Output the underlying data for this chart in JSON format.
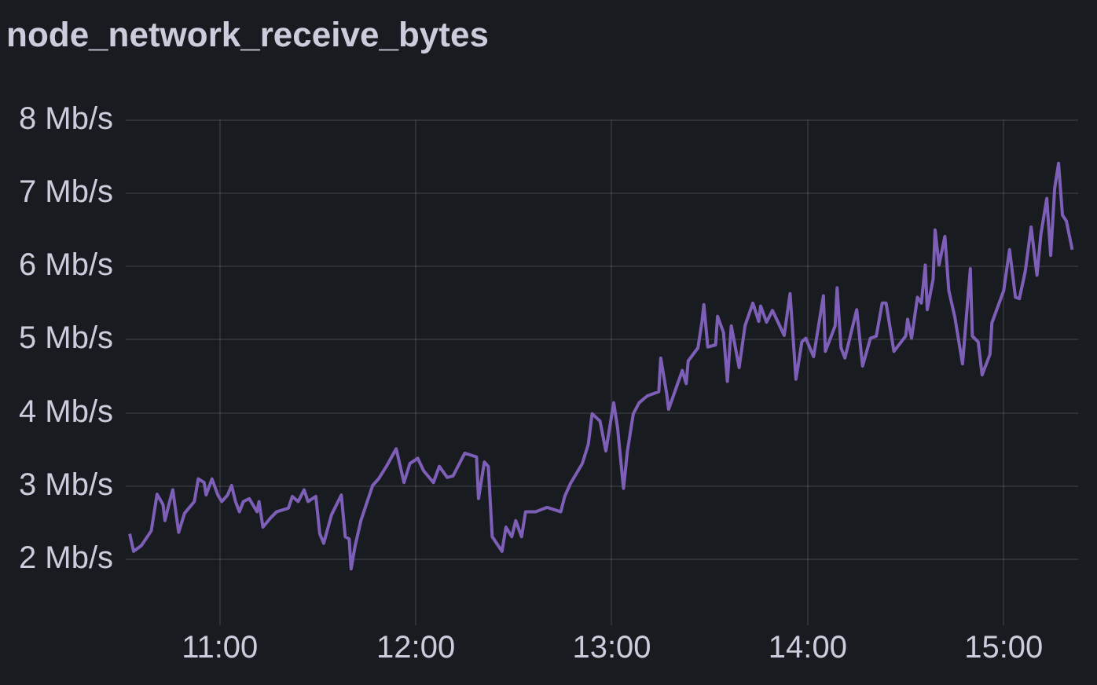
{
  "chart_data": {
    "type": "line",
    "title": "node_network_receive_bytes",
    "xlim": [
      10.52,
      15.38
    ],
    "xticks": [
      {
        "value": 11,
        "label": "11:00"
      },
      {
        "value": 12,
        "label": "12:00"
      },
      {
        "value": 13,
        "label": "13:00"
      },
      {
        "value": 14,
        "label": "14:00"
      },
      {
        "value": 15,
        "label": "15:00"
      }
    ],
    "ylim": [
      1.1,
      8
    ],
    "yticks": [
      {
        "value": 2,
        "label": "2 Mb/s"
      },
      {
        "value": 3,
        "label": "3 Mb/s"
      },
      {
        "value": 4,
        "label": "4 Mb/s"
      },
      {
        "value": 5,
        "label": "5 Mb/s"
      },
      {
        "value": 6,
        "label": "6 Mb/s"
      },
      {
        "value": 7,
        "label": "7 Mb/s"
      },
      {
        "value": 8,
        "label": "8 Mb/s"
      }
    ],
    "grid": true,
    "marker": "none",
    "line_style": "solid",
    "series": [
      {
        "color": "#7e5fb8",
        "x": [
          10.54,
          10.56,
          10.6,
          10.65,
          10.68,
          10.71,
          10.72,
          10.74,
          10.76,
          10.79,
          10.82,
          10.87,
          10.89,
          10.92,
          10.93,
          10.96,
          10.99,
          11.01,
          11.04,
          11.06,
          11.08,
          11.1,
          11.12,
          11.15,
          11.19,
          11.2,
          11.22,
          11.26,
          11.29,
          11.35,
          11.37,
          11.4,
          11.43,
          11.45,
          11.49,
          11.51,
          11.53,
          11.57,
          11.62,
          11.64,
          11.66,
          11.67,
          11.69,
          11.72,
          11.78,
          11.81,
          11.85,
          11.9,
          11.94,
          11.97,
          12.01,
          12.04,
          12.09,
          12.12,
          12.16,
          12.19,
          12.25,
          12.31,
          12.32,
          12.35,
          12.37,
          12.39,
          12.44,
          12.46,
          12.49,
          12.51,
          12.54,
          12.56,
          12.61,
          12.67,
          12.74,
          12.76,
          12.79,
          12.85,
          12.88,
          12.9,
          12.94,
          12.97,
          13.01,
          13.03,
          13.06,
          13.08,
          13.11,
          13.14,
          13.18,
          13.24,
          13.25,
          13.28,
          13.29,
          13.31,
          13.36,
          13.38,
          13.39,
          13.44,
          13.46,
          13.47,
          13.49,
          13.53,
          13.54,
          13.57,
          13.59,
          13.61,
          13.65,
          13.68,
          13.72,
          13.75,
          13.76,
          13.79,
          13.82,
          13.88,
          13.91,
          13.94,
          13.97,
          13.99,
          14.03,
          14.08,
          14.09,
          14.14,
          14.15,
          14.17,
          14.19,
          14.25,
          14.28,
          14.32,
          14.35,
          14.38,
          14.4,
          14.44,
          14.5,
          14.51,
          14.53,
          14.56,
          14.58,
          14.6,
          14.61,
          14.64,
          14.65,
          14.67,
          14.7,
          14.72,
          14.75,
          14.79,
          14.83,
          14.84,
          14.87,
          14.89,
          14.93,
          14.94,
          15.0,
          15.03,
          15.06,
          15.08,
          15.11,
          15.14,
          15.17,
          15.19,
          15.22,
          15.24,
          15.26,
          15.28,
          15.3,
          15.32,
          15.35
        ],
        "values": [
          2.35,
          2.11,
          2.19,
          2.39,
          2.89,
          2.75,
          2.53,
          2.75,
          2.95,
          2.37,
          2.63,
          2.79,
          3.1,
          3.05,
          2.88,
          3.1,
          2.88,
          2.79,
          2.88,
          3.01,
          2.79,
          2.65,
          2.79,
          2.83,
          2.65,
          2.79,
          2.44,
          2.57,
          2.65,
          2.7,
          2.86,
          2.79,
          2.95,
          2.79,
          2.86,
          2.35,
          2.22,
          2.61,
          2.88,
          2.31,
          2.28,
          1.87,
          2.18,
          2.53,
          3.01,
          3.1,
          3.27,
          3.51,
          3.05,
          3.31,
          3.38,
          3.21,
          3.05,
          3.27,
          3.12,
          3.14,
          3.45,
          3.4,
          2.83,
          3.33,
          3.27,
          2.31,
          2.11,
          2.44,
          2.31,
          2.53,
          2.31,
          2.65,
          2.65,
          2.71,
          2.65,
          2.86,
          3.04,
          3.31,
          3.57,
          3.99,
          3.89,
          3.48,
          4.14,
          3.79,
          2.97,
          3.48,
          3.99,
          4.14,
          4.23,
          4.29,
          4.75,
          4.27,
          4.05,
          4.2,
          4.58,
          4.4,
          4.71,
          4.89,
          5.24,
          5.48,
          4.9,
          4.93,
          5.32,
          5.1,
          4.43,
          5.19,
          4.62,
          5.19,
          5.5,
          5.25,
          5.46,
          5.24,
          5.4,
          5.06,
          5.63,
          4.46,
          4.97,
          5.02,
          4.77,
          5.6,
          4.84,
          5.19,
          5.71,
          4.89,
          4.75,
          5.41,
          4.64,
          5.02,
          5.05,
          5.5,
          5.5,
          4.84,
          5.05,
          5.28,
          5.02,
          5.58,
          5.5,
          6.02,
          5.41,
          5.83,
          6.5,
          6.02,
          6.41,
          5.67,
          5.32,
          4.67,
          5.97,
          5.05,
          4.97,
          4.52,
          4.8,
          5.23,
          5.67,
          6.23,
          5.58,
          5.56,
          5.93,
          6.54,
          5.88,
          6.44,
          6.93,
          6.15,
          7.06,
          7.41,
          6.7,
          6.62,
          6.23
        ]
      }
    ]
  }
}
